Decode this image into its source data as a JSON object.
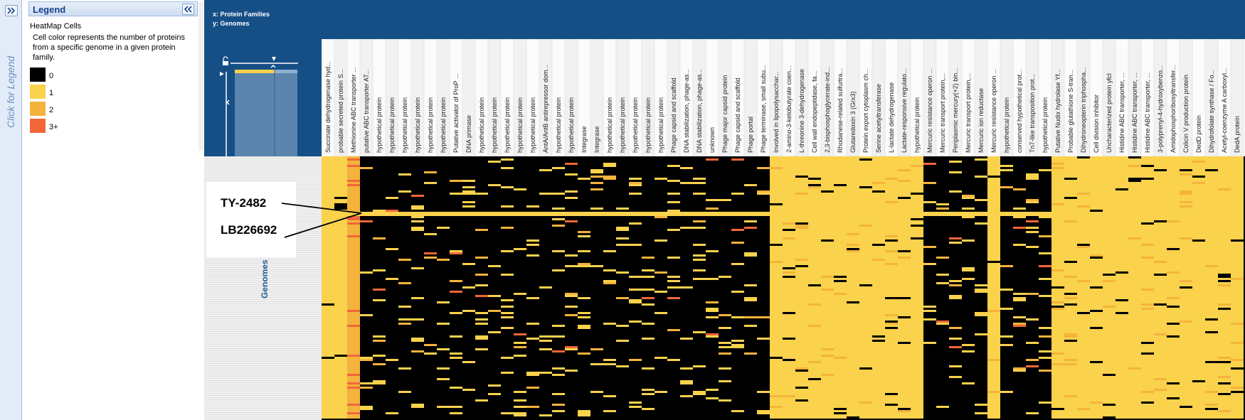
{
  "left_strip": {
    "expand_icon": "double-chevron-right-icon",
    "vertical_label": "Click for Legend"
  },
  "legend": {
    "title": "Legend",
    "collapse_icon": "double-chevron-left-icon",
    "heading": "HeatMap Cells",
    "description": "Cell color represents the number of proteins from a specific genome in a given protein family.",
    "items": [
      {
        "label": "0",
        "color": "#000000"
      },
      {
        "label": "1",
        "color": "#fad24c"
      },
      {
        "label": "2",
        "color": "#f4b33c"
      },
      {
        "label": "3+",
        "color": "#f3663a"
      }
    ]
  },
  "heatmap": {
    "x_axis": "x: Protein Families",
    "y_axis": "y: Genomes",
    "row_axis_label": "Genomes",
    "header_color": "#164f86"
  },
  "callout": {
    "label_top": "TY-2482",
    "label_bottom": "LB226692"
  },
  "chart_data": {
    "type": "heatmap",
    "x_label": "x: Protein Families",
    "y_label": "y: Genomes",
    "color_scale": [
      {
        "value": 0,
        "label": "0",
        "color": "#000000"
      },
      {
        "value": 1,
        "label": "1",
        "color": "#fad24c"
      },
      {
        "value": 2,
        "label": "2",
        "color": "#f4b33c"
      },
      {
        "value": 3,
        "label": "3+",
        "color": "#f3663a"
      }
    ],
    "columns": [
      "Succinate dehydrogenase hyd...",
      "probable secreted protein S...",
      "Methionine ABC transporter ...",
      "putative ABC transporter AT...",
      "hypothetical protein",
      "hypothetical protein",
      "hypothetical protein",
      "hypothetical protein",
      "hypothetical protein",
      "hypothetical protein",
      "Putative activator of ProP ...",
      "DNA primase",
      "hypothetical protein",
      "hypothetical protein",
      "hypothetical protein",
      "hypothetical protein",
      "hypothetical protein",
      "AntA/AntB antirepressor dom...",
      "hypothetical protein",
      "hypothetical protein",
      "Integrase",
      "Integrase",
      "hypothetical protein",
      "hypothetical protein",
      "hypothetical protein",
      "hypothetical protein",
      "hypothetical protein",
      "Phage capsid and scaffold",
      "DNA stabilization, phage-as...",
      "DNA stabilization, phage-as...",
      "unknown",
      "Phage major capsid protein",
      "Phage capsid and scaffold",
      "Phage portal",
      "Phage terminase, small subu...",
      "Involved in lipopolysacchar...",
      "2-amino-3-ketobutyrate coen...",
      "L-threonine 3-dehydrogenase",
      "Cell wall endopeptidase, fa...",
      "2,3-bisphosphoglycerate-ind...",
      "Rhodanese-related sulfurtra...",
      "Glutaredoxin 3 (Grx3)",
      "Protein export cytoplasm ch...",
      "Serine acetyltransferase",
      "L-lactate dehydrogenase",
      "Lactate-responsive regulato...",
      "hypothetical protein",
      "Mercuric resistance operon ...",
      "Mercuric transport protein,...",
      "Periplasmic mercury(+2) bin...",
      "Mercuric transport protein,...",
      "Mercuric ion reductase",
      "Mercuric resistance operon ...",
      "hypothetical protein",
      "conserved hypothetical prot...",
      "Tn7-like transposition prot...",
      "hypothetical protein",
      "Putative Nudix hydrolase Yf...",
      "Probable glutathione S-tran...",
      "Dihydroneopterin triphospha...",
      "Cell division inhibitor",
      "Uncharacterized protein yfcI",
      "Histidine ABC transporter, ...",
      "Histidine ABC transporter, ...",
      "Histidine ABC transporter, ...",
      "3-polyprenyl-4-hydroxybenzo...",
      "Amidophosphoribosyltransfer...",
      "Colicin V production protein",
      "DedD protein",
      "Dihydrofolate synthase / Fo...",
      "Acetyl-coenzyme A carboxyl...",
      "DedA protein"
    ],
    "column_block_pattern": "mostly 0 for columns 4–36 and 48–56, mostly 1 for columns 37–47 and 57–71, column 1–2 mostly 1, column 3 mostly 2",
    "highlighted_rows": [
      "TY-2482",
      "LB226692"
    ]
  }
}
